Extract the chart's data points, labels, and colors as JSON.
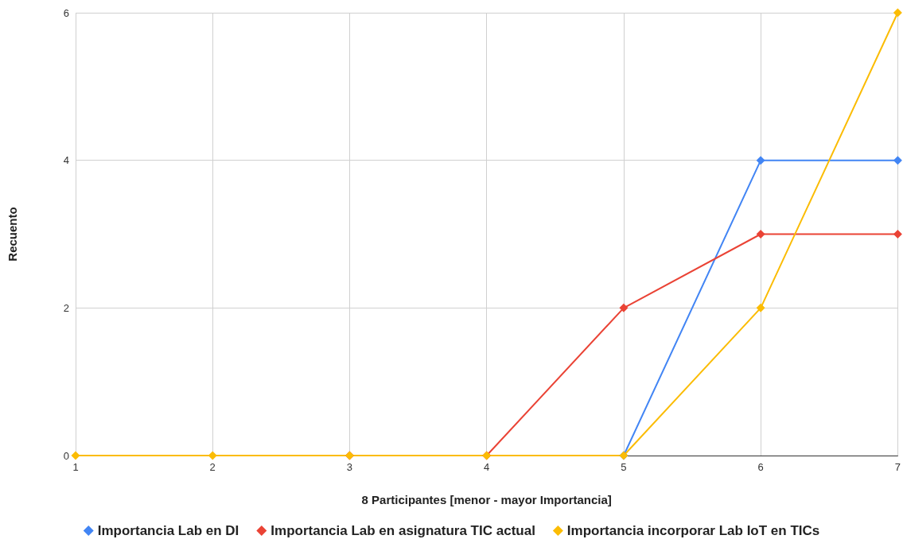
{
  "chart_data": {
    "type": "line",
    "xlabel": "8 Participantes [menor - mayor Importancia]",
    "ylabel": "Recuento",
    "x": [
      1,
      2,
      3,
      4,
      5,
      6,
      7
    ],
    "xlim": [
      1,
      7
    ],
    "xticks": [
      1,
      2,
      3,
      4,
      5,
      6,
      7
    ],
    "ylim": [
      0,
      6
    ],
    "yticks": [
      0,
      2,
      4,
      6
    ],
    "grid": true,
    "legend": "bottom",
    "marker": "diamond",
    "line_style": "solid",
    "series": [
      {
        "name": "Importancia Lab en DI",
        "color": "#4285f4",
        "values": [
          null,
          null,
          null,
          null,
          0,
          4,
          4
        ]
      },
      {
        "name": "Importancia Lab en asignatura TIC actual",
        "color": "#ea4335",
        "values": [
          null,
          null,
          0,
          0,
          2,
          3,
          3
        ]
      },
      {
        "name": "Importancia incorporar Lab IoT en TICs",
        "color": "#fbbc04",
        "values": [
          0,
          0,
          0,
          0,
          0,
          2,
          6
        ]
      }
    ]
  }
}
